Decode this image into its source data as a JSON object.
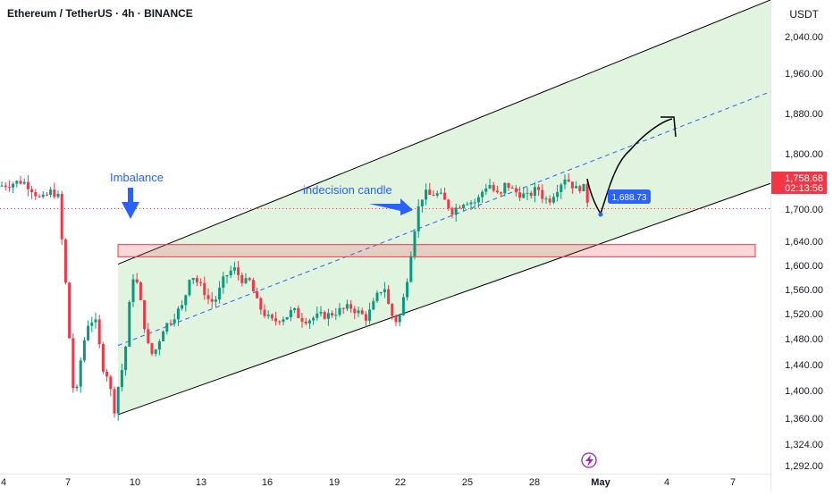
{
  "header": {
    "title": "Ethereum / TetherUS · 4h · BINANCE",
    "currency": "USDT"
  },
  "chart_data": {
    "type": "candlestick",
    "title": "Ethereum / TetherUS · 4h · BINANCE",
    "y_axis": {
      "unit": "USDT",
      "range": [
        1280,
        2100
      ],
      "ticks": [
        "2,040.00",
        "1,960.00",
        "1,880.00",
        "1,800.00",
        "1,700.00",
        "1,640.00",
        "1,600.00",
        "1,560.00",
        "1,520.00",
        "1,480.00",
        "1,440.00",
        "1,400.00",
        "1,360.00",
        "1,324.00",
        "1,292.00"
      ]
    },
    "x_axis": {
      "ticks": [
        "4",
        "7",
        "10",
        "13",
        "16",
        "19",
        "22",
        "25",
        "28",
        "May",
        "4",
        "7"
      ]
    },
    "last_price": {
      "value": "1,758.68",
      "countdown": "02:13:56",
      "color": "#f23645"
    },
    "annotations": {
      "imbalance_label": "Imbalance",
      "indecision_label": "indecision candle",
      "target_label": "1,688.73",
      "event_icon": "lightning-icon"
    },
    "zone": {
      "top": 1700,
      "bottom": 1680,
      "color": "#f23645"
    },
    "channel": {
      "lower_start": 1422,
      "lower_end": 1800,
      "upper_start": 1668,
      "upper_end": 2100,
      "mid_start": 1535,
      "mid_end": 1950,
      "start_date": "9",
      "end_date": "7 May"
    },
    "colors": {
      "up": "#089981",
      "down": "#f23645",
      "channel_fill": "#d6f0d6",
      "arrow": "#2962ff"
    },
    "candles": []
  }
}
